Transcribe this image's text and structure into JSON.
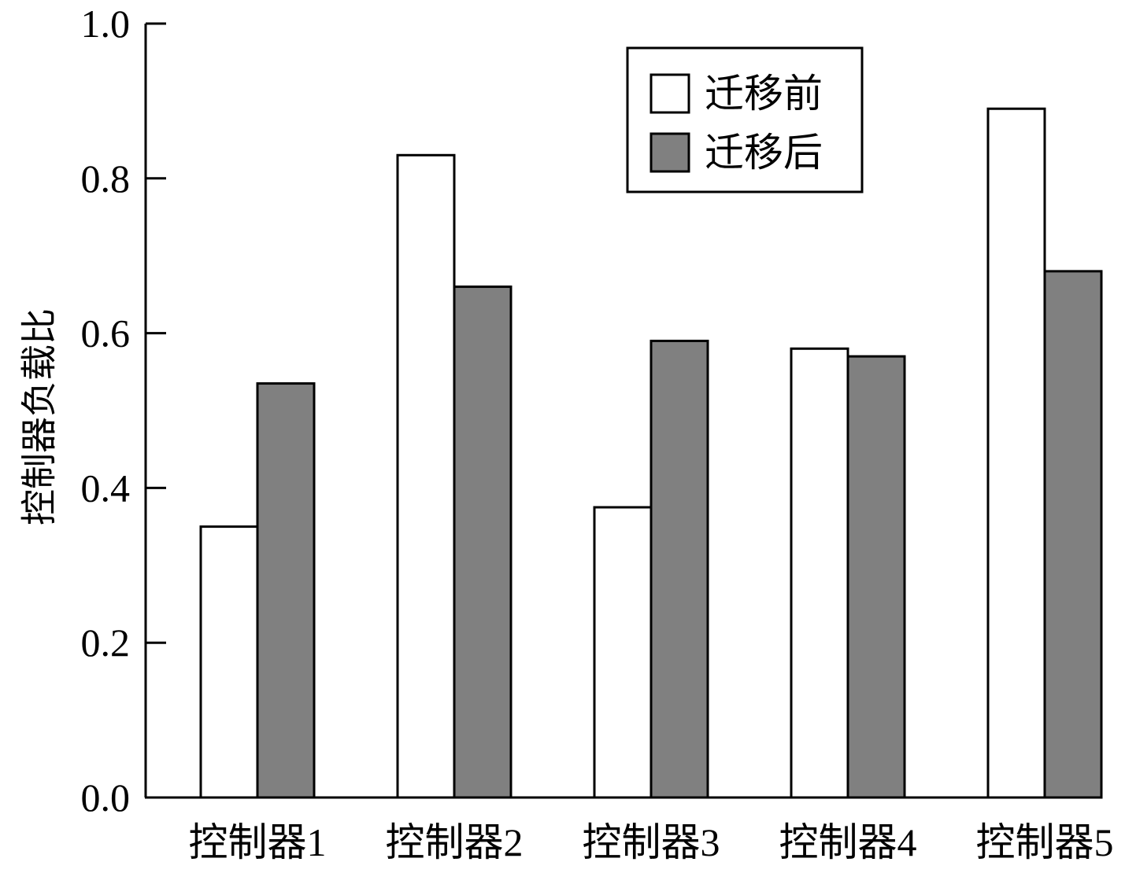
{
  "chart_data": {
    "type": "bar",
    "title": "",
    "xlabel": "",
    "ylabel": "控制器负载比",
    "categories": [
      "控制器1",
      "控制器2",
      "控制器3",
      "控制器4",
      "控制器5"
    ],
    "series": [
      {
        "name": "迁移前",
        "color": "#ffffff",
        "values": [
          0.35,
          0.83,
          0.375,
          0.58,
          0.89
        ]
      },
      {
        "name": "迁移后",
        "color": "#808080",
        "values": [
          0.535,
          0.66,
          0.59,
          0.57,
          0.68
        ]
      }
    ],
    "ylim": [
      0,
      1.0
    ],
    "yticks": [
      "0.0",
      "0.2",
      "0.4",
      "0.6",
      "0.8",
      "1.0"
    ],
    "legend_position": "top-right",
    "grid": false
  }
}
